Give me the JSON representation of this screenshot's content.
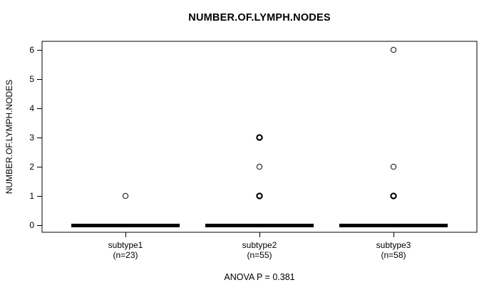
{
  "chart_data": {
    "type": "boxplot",
    "title": "NUMBER.OF.LYMPH.NODES",
    "ylabel": "NUMBER.OF.LYMPH.NODES",
    "annotation": "ANOVA P = 0.381",
    "ylim": [
      -0.24,
      6.24
    ],
    "yticks": [
      0,
      1,
      2,
      3,
      4,
      5,
      6
    ],
    "grid": false,
    "legend": "none",
    "groups": [
      {
        "label": "subtype1",
        "sublabel": "(n=23)",
        "n": 23,
        "median": 0,
        "q1": 0,
        "q3": 0,
        "whisker_low": 0,
        "whisker_high": 0,
        "outliers": [
          1
        ],
        "overplotted_outliers": []
      },
      {
        "label": "subtype2",
        "sublabel": "(n=55)",
        "n": 55,
        "median": 0,
        "q1": 0,
        "q3": 0,
        "whisker_low": 0,
        "whisker_high": 0,
        "outliers": [
          1,
          2,
          3
        ],
        "overplotted_outliers": [
          1,
          3
        ]
      },
      {
        "label": "subtype3",
        "sublabel": "(n=58)",
        "n": 58,
        "median": 0,
        "q1": 0,
        "q3": 0,
        "whisker_low": 0,
        "whisker_high": 0,
        "outliers": [
          1,
          2,
          6
        ],
        "overplotted_outliers": [
          1
        ]
      }
    ],
    "colors": {
      "foreground": "#000000",
      "background": "#ffffff",
      "outlier_normal": "#3a3a3a",
      "outlier_overplotted": "#000000"
    }
  }
}
